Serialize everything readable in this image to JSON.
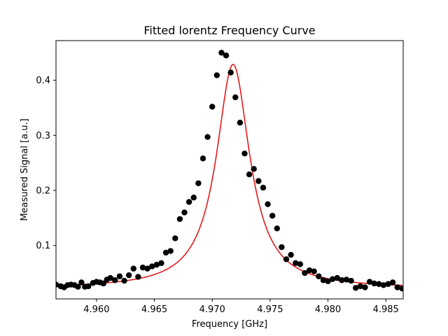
{
  "chart_data": {
    "type": "scatter",
    "title": "Fitted lorentz Frequency Curve",
    "xlabel": "Frequency [GHz]",
    "ylabel": "Measured Signal [a.u.]",
    "xlim": [
      4.9565,
      4.9865
    ],
    "ylim": [
      0.003,
      0.472
    ],
    "xticks": [
      4.96,
      4.965,
      4.97,
      4.975,
      4.98,
      4.985
    ],
    "xtick_labels": [
      "4.960",
      "4.965",
      "4.970",
      "4.975",
      "4.980",
      "4.985"
    ],
    "yticks": [
      0.1,
      0.2,
      0.3,
      0.4
    ],
    "ytick_labels": [
      "0.1",
      "0.2",
      "0.3",
      "0.4"
    ],
    "grid": false,
    "legend": "none",
    "colors": {
      "data": "#000000",
      "fit": "#e41a1c"
    },
    "series": [
      {
        "kind": "scatter",
        "x": [
          4.9565,
          4.9569,
          4.9572,
          4.9575,
          4.9578,
          4.9581,
          4.9584,
          4.9587,
          4.959,
          4.9593,
          4.9597,
          4.96,
          4.9603,
          4.9606,
          4.9609,
          4.9612,
          4.9616,
          4.962,
          4.9624,
          4.9628,
          4.9632,
          4.9636,
          4.964,
          4.9644,
          4.9648,
          4.9652,
          4.9656,
          4.966,
          4.9664,
          4.9668,
          4.9672,
          4.9676,
          4.968,
          4.9684,
          4.9688,
          4.9692,
          4.9696,
          4.97,
          4.9704,
          4.9708,
          4.9712,
          4.9716,
          4.972,
          4.9724,
          4.9728,
          4.9732,
          4.9736,
          4.974,
          4.9744,
          4.9748,
          4.9752,
          4.9756,
          4.976,
          4.9764,
          4.9768,
          4.9772,
          4.9776,
          4.978,
          4.9784,
          4.9788,
          4.9792,
          4.9796,
          4.98,
          4.9804,
          4.9808,
          4.9812,
          4.9816,
          4.982,
          4.9824,
          4.9828,
          4.9832,
          4.9836,
          4.984,
          4.9844,
          4.9848,
          4.9852,
          4.9856,
          4.986,
          4.9864
        ],
        "y": [
          0.029,
          0.026,
          0.024,
          0.028,
          0.029,
          0.028,
          0.025,
          0.033,
          0.025,
          0.026,
          0.032,
          0.034,
          0.033,
          0.031,
          0.038,
          0.041,
          0.037,
          0.044,
          0.036,
          0.046,
          0.058,
          0.043,
          0.06,
          0.058,
          0.062,
          0.065,
          0.068,
          0.087,
          0.09,
          0.113,
          0.148,
          0.16,
          0.179,
          0.187,
          0.213,
          0.258,
          0.297,
          0.352,
          0.409,
          0.45,
          0.445,
          0.414,
          0.369,
          0.323,
          0.267,
          0.229,
          0.239,
          0.217,
          0.205,
          0.175,
          0.154,
          0.131,
          0.097,
          0.075,
          0.083,
          0.068,
          0.066,
          0.05,
          0.055,
          0.053,
          0.044,
          0.037,
          0.035,
          0.039,
          0.041,
          0.037,
          0.038,
          0.036,
          0.023,
          0.026,
          0.024,
          0.034,
          0.031,
          0.03,
          0.028,
          0.03,
          0.033,
          0.024,
          0.022
        ]
      },
      {
        "kind": "line",
        "model": "lorentzian",
        "center": 4.9718,
        "hwhm": 0.00175,
        "amplitude": 0.407,
        "offset": 0.022
      }
    ]
  }
}
